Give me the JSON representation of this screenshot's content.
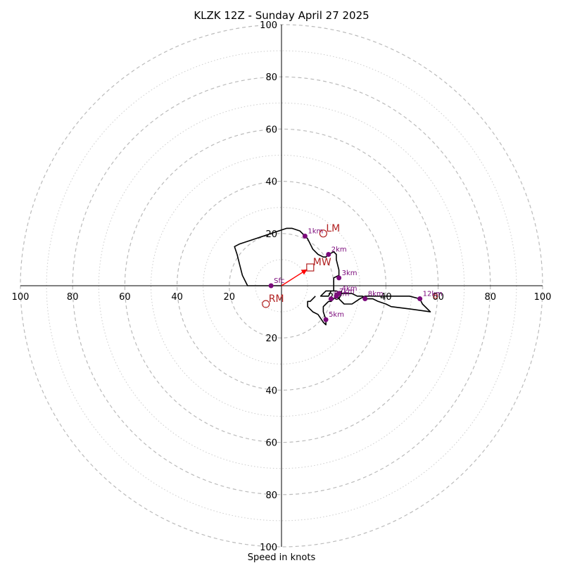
{
  "chart_data": {
    "type": "hodograph",
    "title": "KLZK 12Z - Sunday April 27 2025",
    "xlabel": "Speed in knots",
    "ring_max": 100,
    "ring_labels": [
      "100",
      "80",
      "60",
      "40",
      "20"
    ],
    "colors": {
      "trace": "#000000",
      "height_marker": "#7b0a7b",
      "motion": "#b22222",
      "mean_wind_arrow": "#ff0000",
      "ring_major": "#bbbbbb",
      "ring_minor": "#cccccc"
    },
    "trace": [
      [
        0,
        0
      ],
      [
        13,
        0
      ],
      [
        14,
        2
      ],
      [
        15,
        4
      ],
      [
        16,
        8
      ],
      [
        17,
        12
      ],
      [
        18,
        15
      ],
      [
        16,
        16
      ],
      [
        10,
        18
      ],
      [
        4,
        20
      ],
      [
        -2,
        22
      ],
      [
        -4,
        22
      ],
      [
        -7,
        21
      ],
      [
        -9,
        19
      ],
      [
        -10,
        18
      ],
      [
        -12,
        14
      ],
      [
        -14,
        12
      ],
      [
        -16,
        11
      ],
      [
        -17,
        11
      ],
      [
        -18,
        12
      ],
      [
        -20,
        13
      ],
      [
        -21,
        12
      ],
      [
        -21,
        10
      ],
      [
        -22,
        6
      ],
      [
        -22,
        4
      ],
      [
        -20,
        3
      ],
      [
        -20,
        2
      ],
      [
        -20,
        0
      ],
      [
        -20,
        -2
      ],
      [
        -18,
        -2
      ],
      [
        -17,
        -2
      ],
      [
        -16,
        -3
      ],
      [
        -15,
        -4
      ],
      [
        -18,
        -4
      ],
      [
        -19,
        -2
      ],
      [
        -21,
        -2
      ],
      [
        -23,
        -3
      ],
      [
        -25,
        -3
      ],
      [
        -27,
        -3
      ],
      [
        -29,
        -4
      ],
      [
        -31,
        -4
      ],
      [
        -33,
        -5
      ],
      [
        -35,
        -5
      ],
      [
        -37,
        -6
      ],
      [
        -40,
        -7
      ],
      [
        -42,
        -8
      ],
      [
        -50,
        -9
      ],
      [
        -57,
        -10
      ],
      [
        -54,
        -7
      ],
      [
        -53,
        -5
      ],
      [
        -49,
        -4
      ],
      [
        -45,
        -4
      ],
      [
        -42,
        -4
      ],
      [
        -40,
        -4
      ],
      [
        -38,
        -4
      ],
      [
        -35,
        -4
      ],
      [
        -32,
        -4
      ],
      [
        -30,
        -5
      ],
      [
        -27,
        -7
      ],
      [
        -24,
        -7
      ],
      [
        -22,
        -5
      ],
      [
        -23,
        -3
      ],
      [
        -23,
        -2
      ],
      [
        -21,
        -4
      ],
      [
        -20,
        -5
      ],
      [
        -19,
        -6
      ],
      [
        -18,
        -6
      ],
      [
        -17,
        -7
      ],
      [
        -16,
        -8
      ],
      [
        -16,
        -10
      ],
      [
        -17,
        -13
      ],
      [
        -17,
        -15
      ],
      [
        -16,
        -14
      ],
      [
        -14,
        -11
      ],
      [
        -12,
        -10
      ],
      [
        -11,
        -9
      ],
      [
        -10,
        -8
      ],
      [
        -10,
        -6
      ],
      [
        -11,
        -6
      ],
      [
        -13,
        -4
      ]
    ],
    "height_markers": [
      {
        "label": "Sfc",
        "u": 4,
        "v": 0
      },
      {
        "label": "1km",
        "u": -9,
        "v": 19
      },
      {
        "label": "2km",
        "u": -18,
        "v": 12
      },
      {
        "label": "3km",
        "u": -22,
        "v": 3
      },
      {
        "label": "4km",
        "u": -22,
        "v": -3
      },
      {
        "label": "5km",
        "u": -17,
        "v": -13
      },
      {
        "label": "6km",
        "u": -19,
        "v": -5
      },
      {
        "label": "7km",
        "u": -21,
        "v": -4
      },
      {
        "label": "8km",
        "u": -32,
        "v": -5
      },
      {
        "label": "12km",
        "u": -53,
        "v": -5
      }
    ],
    "storm_motion": [
      {
        "label": "LM",
        "u": -16,
        "v": 20,
        "marker": "circle"
      },
      {
        "label": "RM",
        "u": 6,
        "v": -7,
        "marker": "circle"
      },
      {
        "label": "MW",
        "u": -11,
        "v": 7,
        "marker": "square"
      }
    ],
    "extra_points": [
      {
        "u": -59,
        "v": -4
      }
    ]
  }
}
